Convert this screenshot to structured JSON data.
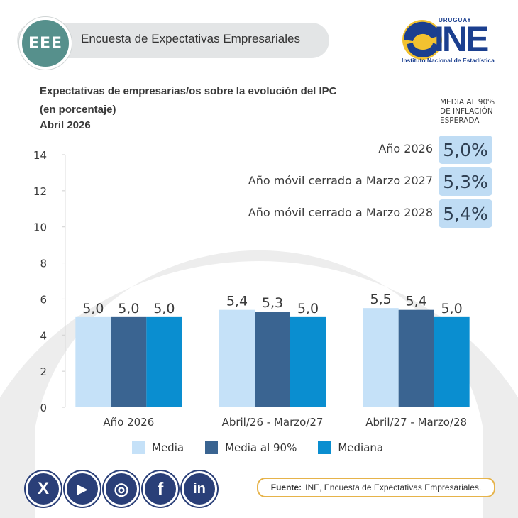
{
  "header": {
    "badge": "EEE",
    "title": "Encuesta de Expectativas Empresariales"
  },
  "logo": {
    "country": "URUGUAY",
    "word": "INE",
    "subtitle": "Instituto Nacional de Estadística"
  },
  "side_panel": {
    "heading": "MEDIA AL 90% DE INFLACIÓN ESPERADA",
    "rows": [
      {
        "label": "Año 2026",
        "value": "5,0%"
      },
      {
        "label": "Año móvil cerrado a Marzo 2027",
        "value": "5,3%"
      },
      {
        "label": "Año móvil cerrado a Marzo 2028",
        "value": "5,4%"
      }
    ]
  },
  "colors": {
    "media": "#c5e1f8",
    "media_90": "#3a6491",
    "mediana": "#0a8ed0",
    "accent_border": "#e6b34a",
    "social": "#2a3f78"
  },
  "chart_data": {
    "type": "bar",
    "title": "Expectativas de empresarias/os sobre la evolución del IPC (en porcentaje)",
    "subtitle": "Abril 2026",
    "categories": [
      "Año 2026",
      "Abril/26 - Marzo/27",
      "Abril/27 - Marzo/28"
    ],
    "series": [
      {
        "name": "Media",
        "values": [
          5.0,
          5.4,
          5.5
        ],
        "labels": [
          "5,0",
          "5,4",
          "5,5"
        ]
      },
      {
        "name": "Media al 90%",
        "values": [
          5.0,
          5.3,
          5.4
        ],
        "labels": [
          "5,0",
          "5,3",
          "5,4"
        ]
      },
      {
        "name": "Mediana",
        "values": [
          5.0,
          5.0,
          5.0
        ],
        "labels": [
          "5,0",
          "5,0",
          "5,0"
        ]
      }
    ],
    "ylim": [
      0,
      14
    ],
    "yticks": [
      0,
      2,
      4,
      6,
      8,
      10,
      12,
      14
    ],
    "legend_position": "bottom"
  },
  "socials": [
    {
      "name": "x",
      "glyph": "X"
    },
    {
      "name": "youtube",
      "glyph": "▶"
    },
    {
      "name": "instagram",
      "glyph": "◎"
    },
    {
      "name": "facebook",
      "glyph": "f"
    },
    {
      "name": "linkedin",
      "glyph": "in"
    }
  ],
  "source": {
    "label": "Fuente:",
    "text": "INE, Encuesta de Expectativas Empresariales."
  }
}
